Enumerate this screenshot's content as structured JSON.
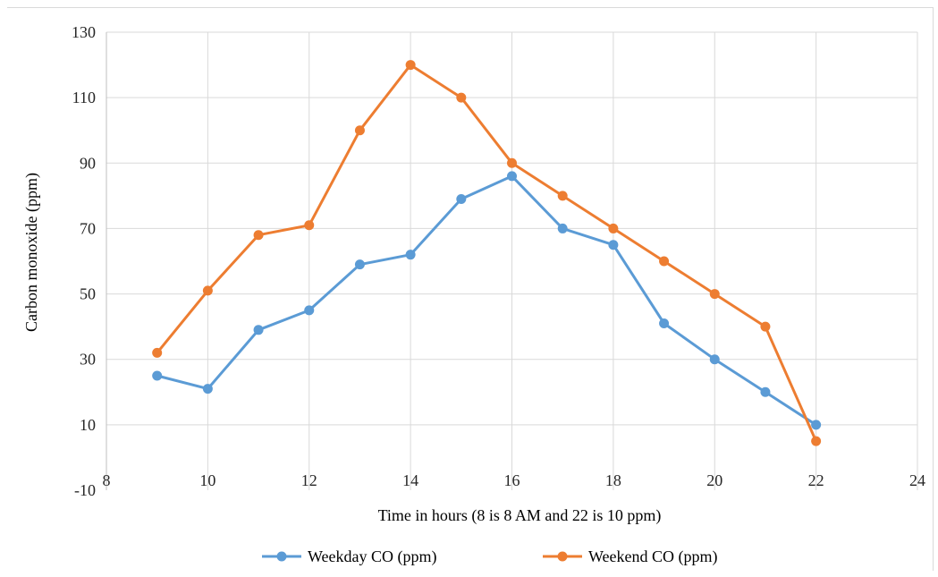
{
  "chart_data": {
    "type": "line",
    "title": "",
    "xlabel": "Time in hours (8 is 8 AM and 22 is 10 ppm)",
    "ylabel": "Carbon monoxide (ppm)",
    "xlim": [
      8,
      24
    ],
    "ylim": [
      -10,
      130
    ],
    "xticks": [
      8,
      10,
      12,
      14,
      16,
      18,
      20,
      22,
      24
    ],
    "yticks": [
      -10,
      10,
      30,
      50,
      70,
      90,
      110,
      130
    ],
    "x_tick_labels": [
      "8",
      "10",
      "12",
      "14",
      "16",
      "18",
      "20",
      "22",
      "24"
    ],
    "y_tick_labels": [
      "-10",
      "10",
      "30",
      "50",
      "70",
      "90",
      "110",
      "130"
    ],
    "grid": true,
    "legend_position": "bottom",
    "series": [
      {
        "name": "Weekday CO (ppm)",
        "color": "#5b9bd5",
        "x": [
          9,
          10,
          11,
          12,
          13,
          14,
          15,
          16,
          17,
          18,
          19,
          20,
          21,
          22
        ],
        "y": [
          25,
          21,
          39,
          45,
          59,
          62,
          79,
          86,
          70,
          65,
          41,
          30,
          20,
          10
        ]
      },
      {
        "name": "Weekend CO (ppm)",
        "color": "#ed7d31",
        "x": [
          9,
          10,
          11,
          12,
          13,
          14,
          15,
          16,
          17,
          18,
          19,
          20,
          21,
          22
        ],
        "y": [
          32,
          51,
          68,
          71,
          100,
          120,
          110,
          90,
          80,
          70,
          60,
          50,
          40,
          5
        ]
      }
    ]
  }
}
